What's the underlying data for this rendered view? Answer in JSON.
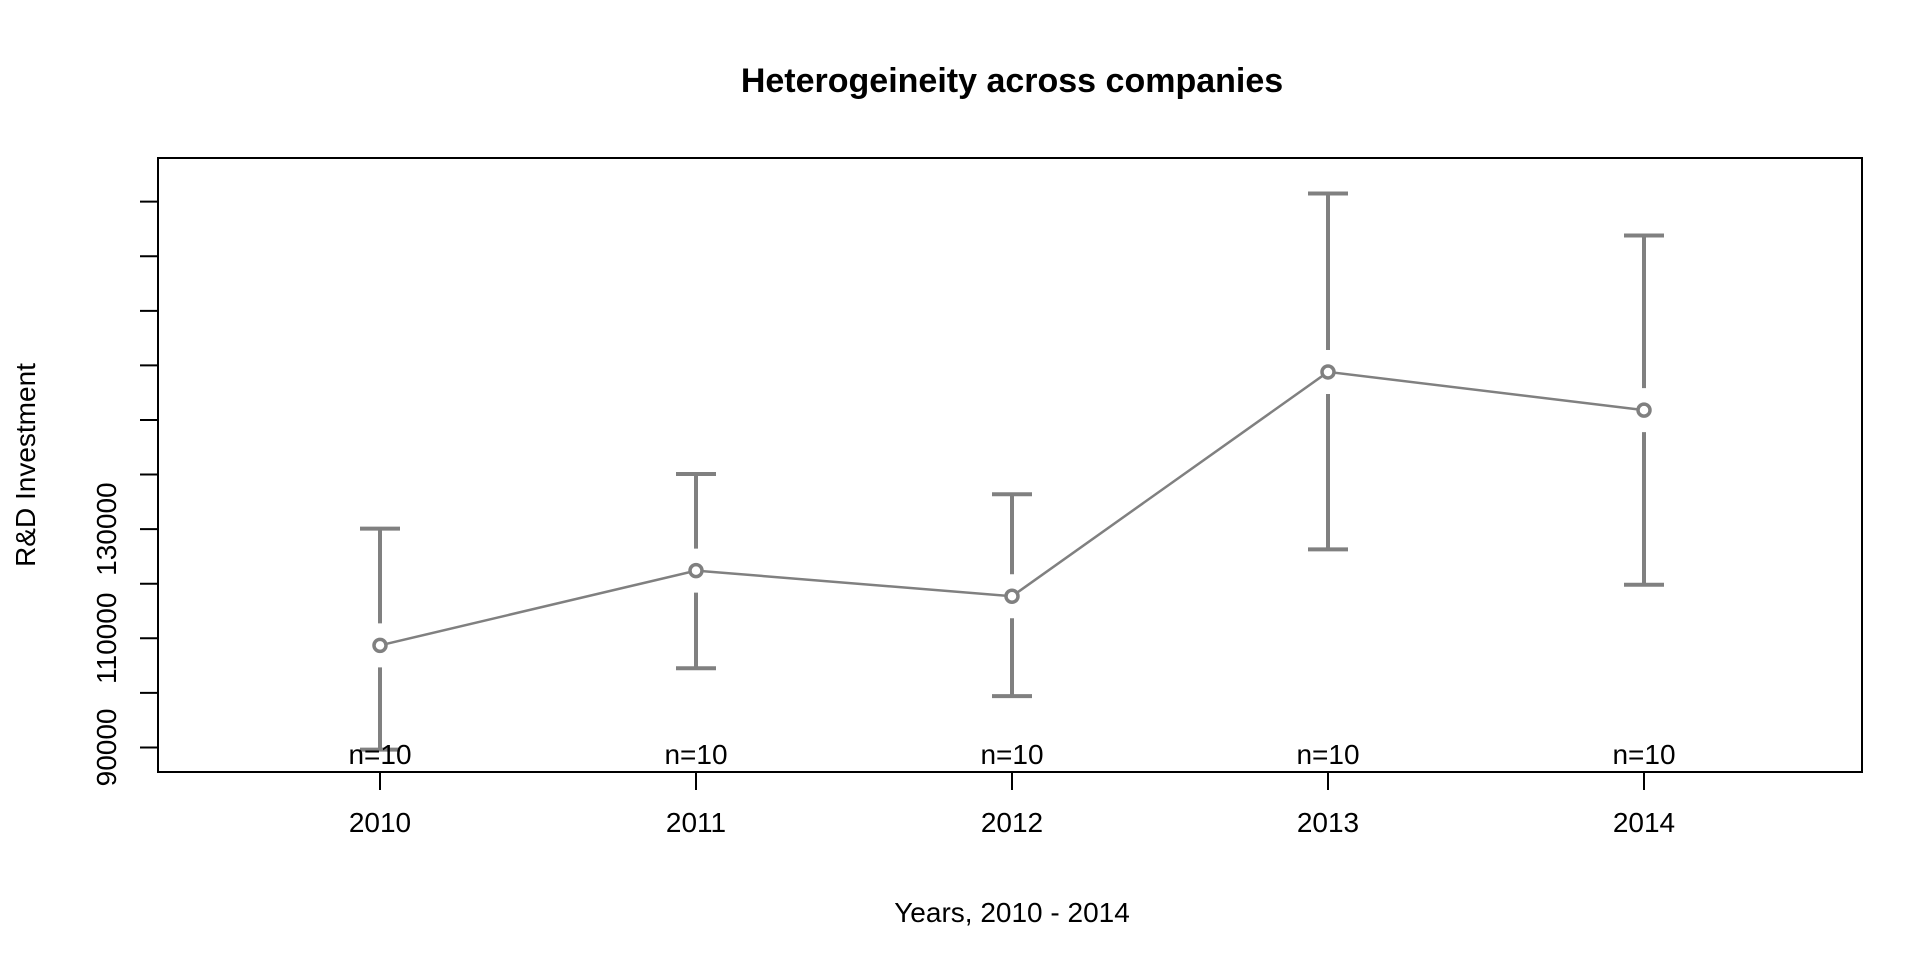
{
  "chart_data": {
    "type": "line",
    "title": "Heterogeineity across companies",
    "xlabel": "Years, 2010 - 2014",
    "ylabel": "R&D Investment",
    "categories": [
      "2010",
      "2011",
      "2012",
      "2013",
      "2014"
    ],
    "series": [
      {
        "values": [
          108700,
          122400,
          117700,
          158800,
          151800
        ],
        "lower": [
          89600,
          104500,
          99400,
          126300,
          119800
        ],
        "upper": [
          130100,
          140100,
          136400,
          191500,
          183800
        ]
      }
    ],
    "group_labels": [
      "n=10",
      "n=10",
      "n=10",
      "n=10",
      "n=10"
    ],
    "yticks": [
      90000,
      110000,
      130000
    ],
    "ylim": [
      85500,
      198000
    ],
    "grid": false,
    "legend": "none",
    "colors": {
      "series": "#808080",
      "axis": "#000000"
    }
  }
}
